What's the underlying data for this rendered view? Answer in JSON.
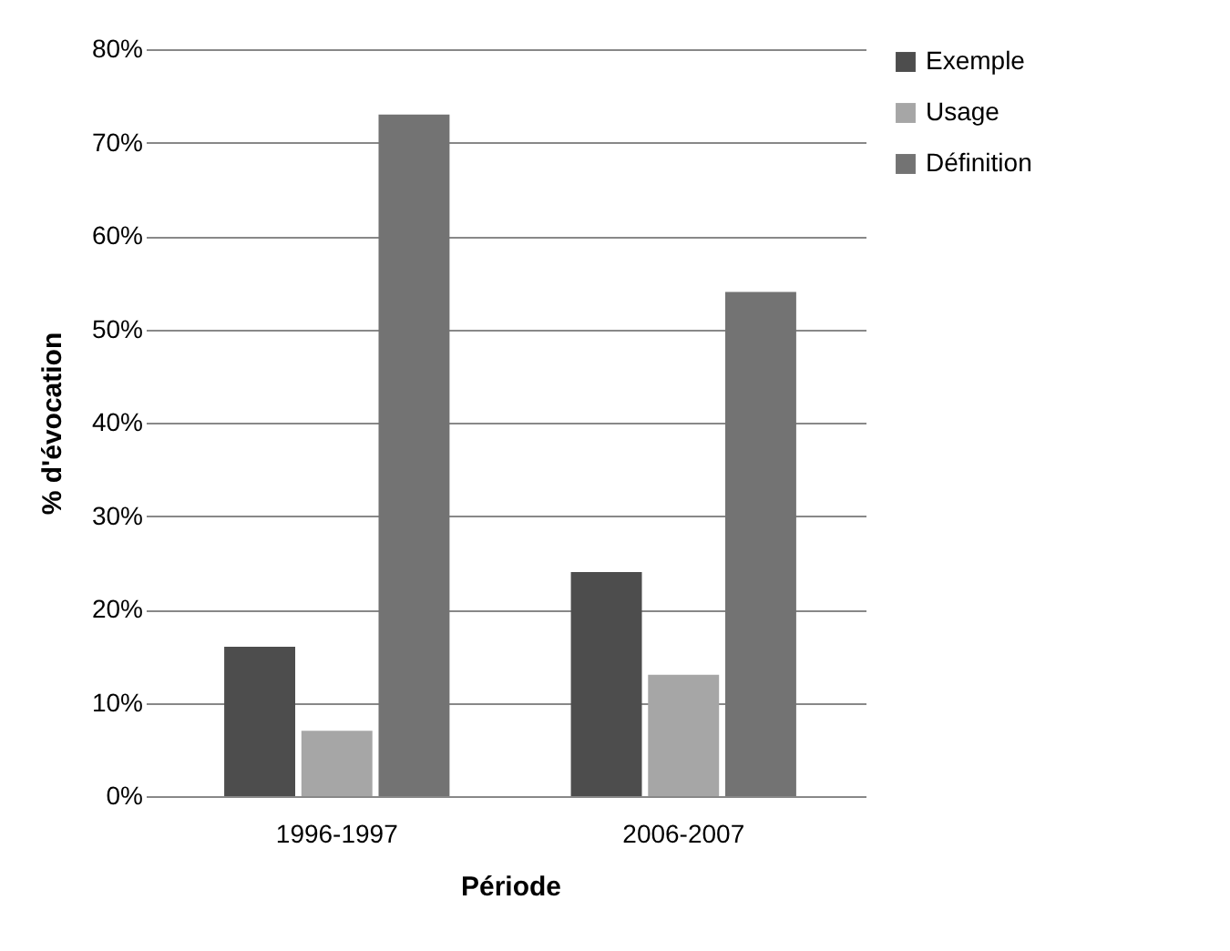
{
  "chart_data": {
    "type": "bar",
    "xlabel": "Période",
    "ylabel": "% d'évocation",
    "categories": [
      "1996-1997",
      "2006-2007"
    ],
    "series": [
      {
        "name": "Exemple",
        "color": "#4d4d4d",
        "values": [
          16,
          24
        ]
      },
      {
        "name": "Usage",
        "color": "#a6a6a6",
        "values": [
          7,
          13
        ]
      },
      {
        "name": "Définition",
        "color": "#737373",
        "values": [
          73,
          54
        ]
      }
    ],
    "ylim": [
      0,
      80
    ],
    "yticks": [
      {
        "value": 0,
        "label": "0%"
      },
      {
        "value": 10,
        "label": "10%"
      },
      {
        "value": 20,
        "label": "20%"
      },
      {
        "value": 30,
        "label": "30%"
      },
      {
        "value": 40,
        "label": "40%"
      },
      {
        "value": 50,
        "label": "50%"
      },
      {
        "value": 60,
        "label": "60%"
      },
      {
        "value": 70,
        "label": "70%"
      },
      {
        "value": 80,
        "label": "80%"
      }
    ],
    "grid": "y",
    "legend": "right"
  }
}
